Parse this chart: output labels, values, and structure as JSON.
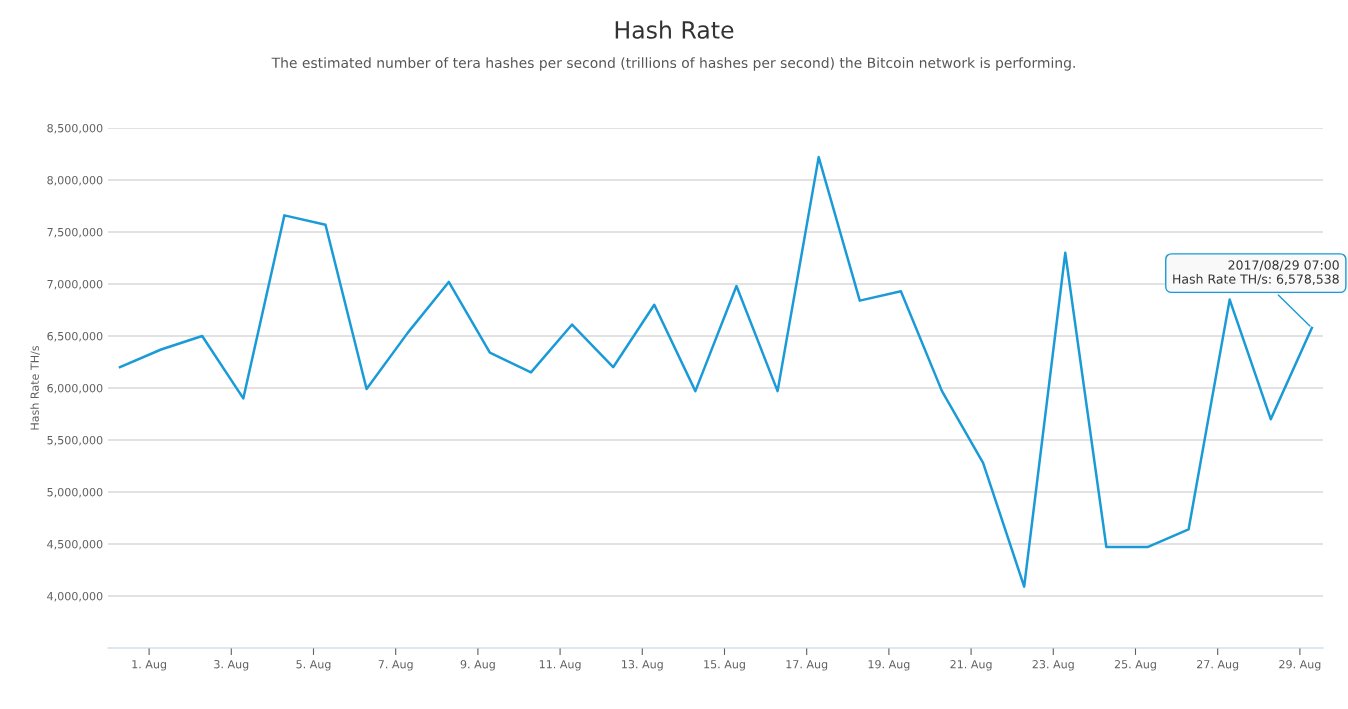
{
  "chart_data": {
    "type": "line",
    "title": "Hash Rate",
    "subtitle": "The estimated number of tera hashes per second (trillions of hashes per second) the Bitcoin network is performing.",
    "ylabel": "Hash Rate TH/s",
    "x": [
      "2017-07-31T07:00",
      "2017-08-01T07:00",
      "2017-08-02T07:00",
      "2017-08-03T07:00",
      "2017-08-04T07:00",
      "2017-08-05T07:00",
      "2017-08-06T07:00",
      "2017-08-07T07:00",
      "2017-08-08T07:00",
      "2017-08-09T07:00",
      "2017-08-10T07:00",
      "2017-08-11T07:00",
      "2017-08-12T07:00",
      "2017-08-13T07:00",
      "2017-08-14T07:00",
      "2017-08-15T07:00",
      "2017-08-16T07:00",
      "2017-08-17T07:00",
      "2017-08-18T07:00",
      "2017-08-19T07:00",
      "2017-08-20T07:00",
      "2017-08-21T07:00",
      "2017-08-22T07:00",
      "2017-08-23T07:00",
      "2017-08-24T07:00",
      "2017-08-25T07:00",
      "2017-08-26T07:00",
      "2017-08-27T07:00",
      "2017-08-28T07:00",
      "2017-08-29T07:00"
    ],
    "series": [
      {
        "color": "#1a9bd7",
        "values": [
          6200000,
          6370000,
          6500000,
          5900000,
          7660000,
          7570000,
          5990000,
          6530000,
          7020000,
          6340000,
          6150000,
          6610000,
          6200000,
          6800000,
          5970000,
          6980000,
          5970000,
          8220000,
          6840000,
          6930000,
          5970000,
          5280000,
          4090000,
          7300000,
          4470000,
          4470000,
          4640000,
          6850000,
          5700000,
          6578538
        ]
      }
    ],
    "xlim": [
      "2017-07-31T00:00",
      "2017-08-29T13:30"
    ],
    "xticks": [
      {
        "value": "2017-08-01",
        "label": "1. Aug"
      },
      {
        "value": "2017-08-03",
        "label": "3. Aug"
      },
      {
        "value": "2017-08-05",
        "label": "5. Aug"
      },
      {
        "value": "2017-08-07",
        "label": "7. Aug"
      },
      {
        "value": "2017-08-09",
        "label": "9. Aug"
      },
      {
        "value": "2017-08-11",
        "label": "11. Aug"
      },
      {
        "value": "2017-08-13",
        "label": "13. Aug"
      },
      {
        "value": "2017-08-15",
        "label": "15. Aug"
      },
      {
        "value": "2017-08-17",
        "label": "17. Aug"
      },
      {
        "value": "2017-08-19",
        "label": "19. Aug"
      },
      {
        "value": "2017-08-21",
        "label": "21. Aug"
      },
      {
        "value": "2017-08-23",
        "label": "23. Aug"
      },
      {
        "value": "2017-08-25",
        "label": "25. Aug"
      },
      {
        "value": "2017-08-27",
        "label": "27. Aug"
      },
      {
        "value": "2017-08-29",
        "label": "29. Aug"
      }
    ],
    "ylim": [
      3500000,
      8500000
    ],
    "yticks": [
      {
        "value": 4000000,
        "label": "4,000,000"
      },
      {
        "value": 4500000,
        "label": "4,500,000"
      },
      {
        "value": 5000000,
        "label": "5,000,000"
      },
      {
        "value": 5500000,
        "label": "5,500,000"
      },
      {
        "value": 6000000,
        "label": "6,000,000"
      },
      {
        "value": 6500000,
        "label": "6,500,000"
      },
      {
        "value": 7000000,
        "label": "7,000,000"
      },
      {
        "value": 7500000,
        "label": "7,500,000"
      },
      {
        "value": 8000000,
        "label": "8,000,000"
      },
      {
        "value": 8500000,
        "label": "8,500,000"
      }
    ],
    "grid": "y",
    "marker": "none",
    "line_style": "solid",
    "annotations": [
      {
        "text": "2017/08/29 07:00\nHash Rate TH/s: 6,578,538",
        "x": "2017-08-29T07:00",
        "y": 6578538
      }
    ]
  }
}
